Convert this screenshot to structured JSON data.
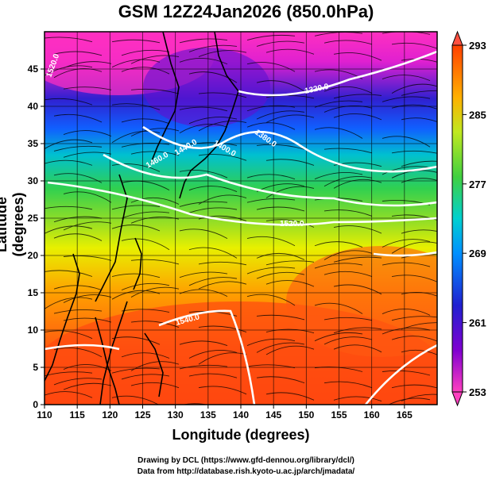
{
  "title": "GSM 12Z24Jan2026 (850.0hPa)",
  "x_axis": {
    "label": "Longitude (degrees)",
    "min": 110,
    "max": 170,
    "ticks": [
      "110",
      "115",
      "120",
      "125",
      "130",
      "135",
      "140",
      "145",
      "150",
      "155",
      "160",
      "165"
    ]
  },
  "y_axis": {
    "label": "Latitude  (degrees)",
    "min": 0,
    "max": 50,
    "ticks": [
      "0",
      "5",
      "10",
      "15",
      "20",
      "25",
      "30",
      "35",
      "40",
      "45"
    ]
  },
  "colorbar": {
    "min": 253,
    "max": 293,
    "labels": [
      "253",
      "261",
      "269",
      "277",
      "285",
      "293"
    ],
    "colors": [
      "#ff40c0",
      "#8000d0",
      "#2020d0",
      "#0080ff",
      "#00d0d0",
      "#40d040",
      "#a0e020",
      "#f0f000",
      "#ffa000",
      "#ff4000"
    ]
  },
  "contour_labels": [
    "1320.0",
    "1380.0",
    "1400.0",
    "1440.0",
    "1460.0",
    "1520.0",
    "1540.0",
    "1520.0"
  ],
  "credits": [
    "Drawing by DCL (https://www.gfd-dennou.org/library/dcl/)",
    "Data from http://database.rish.kyoto-u.ac.jp/arch/jmadata/"
  ]
}
